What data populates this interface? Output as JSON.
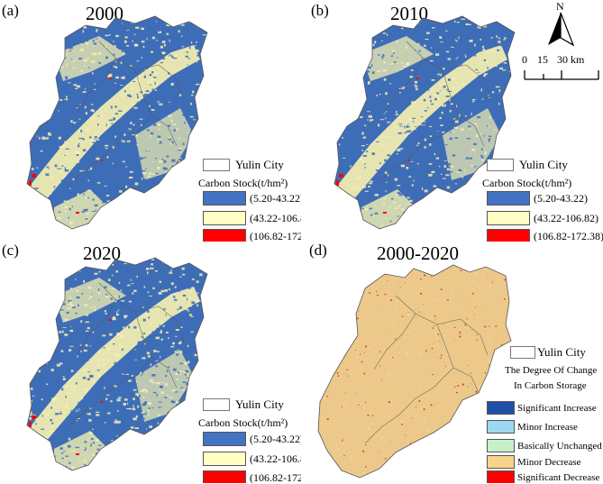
{
  "panels": [
    {
      "label": "(a)",
      "title": "2000"
    },
    {
      "label": "(b)",
      "title": "2010"
    },
    {
      "label": "(c)",
      "title": "2020"
    },
    {
      "label": "(d)",
      "title": "2000-2020"
    }
  ],
  "carbon_legend": {
    "city": "Yulin City",
    "title": "Carbon Stock(t/hm²)",
    "classes": [
      {
        "label": "(5.20-43.22)",
        "color": "#4472C4"
      },
      {
        "label": "(43.22-106.82)",
        "color": "#FFFFC4"
      },
      {
        "label": "(106.82-172.38)",
        "color": "#FF0000"
      }
    ]
  },
  "change_legend": {
    "city": "Yulin City",
    "title_line1": "The Degree Of Change",
    "title_line2": "In Carbon Storage",
    "classes": [
      {
        "label": "Significant Increase",
        "color": "#1F4FA8"
      },
      {
        "label": "Minor Increase",
        "color": "#9ED8F0"
      },
      {
        "label": "Basically Unchanged",
        "color": "#C8F0C8"
      },
      {
        "label": "Minor Decrease",
        "color": "#F5D58A"
      },
      {
        "label": "Significant Decrease",
        "color": "#FF0000"
      }
    ]
  },
  "scale_bar": {
    "north": "N",
    "ticks": [
      "0",
      "15",
      "30 km"
    ]
  },
  "map_colors": {
    "stock_low": "#3E6DB8",
    "stock_mid": "#F4F0B0",
    "stock_high": "#FF0000",
    "change_bg": "#ECC98A",
    "change_sig_dec": "#D83020",
    "boundary": "#555555"
  }
}
